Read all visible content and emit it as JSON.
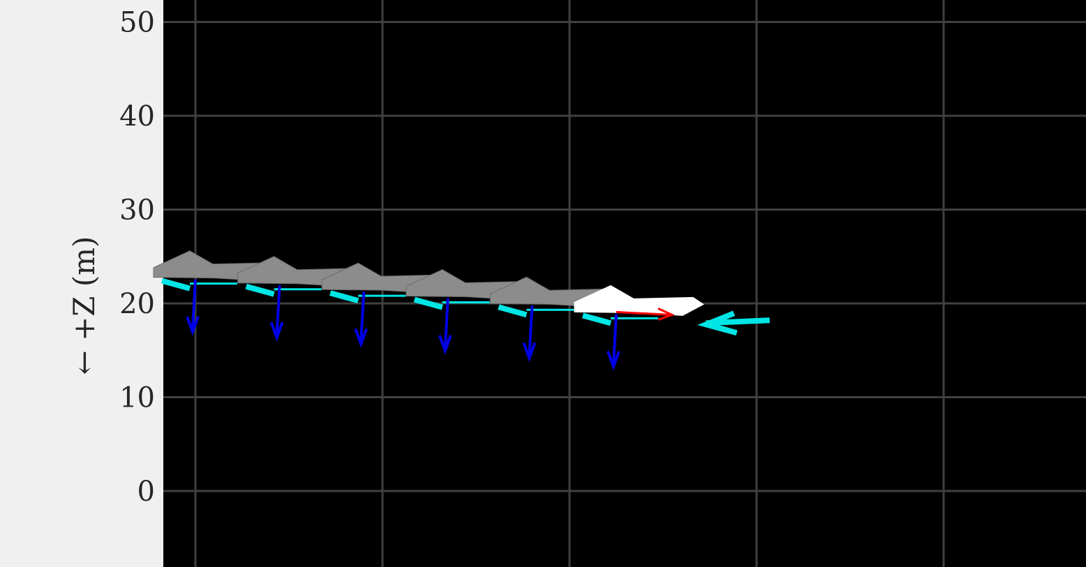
{
  "chart_data": {
    "type": "line",
    "title": "",
    "xlabel": "",
    "ylabel": "← +Z (m)",
    "ylim": [
      -8,
      52
    ],
    "xlim": [
      -1.7,
      47.5
    ],
    "grid": true,
    "background": "#000000",
    "y_ticks": [
      "0",
      "10",
      "20",
      "30",
      "40",
      "50"
    ],
    "y_tick_values": [
      0,
      10,
      20,
      30,
      40,
      50
    ],
    "x_grid_values": [
      0,
      10,
      20,
      30,
      40
    ],
    "series": [
      {
        "name": "aircraft trajectory",
        "frames": [
          {
            "x": 0,
            "z": 23.0
          },
          {
            "x": 4.5,
            "z": 22.4
          },
          {
            "x": 9.0,
            "z": 21.7
          },
          {
            "x": 13.5,
            "z": 21.0
          },
          {
            "x": 18.0,
            "z": 20.2
          },
          {
            "x": 22.5,
            "z": 19.3
          }
        ]
      }
    ],
    "vectors": {
      "lift_down": {
        "color": "#0000e6",
        "length_m": 5.3
      },
      "velocity": {
        "color": "#ff0000"
      },
      "drag_wind": {
        "color": "#00e5e5",
        "tail": {
          "x": 30.7,
          "z": 18.2
        },
        "head": {
          "x": 27.3,
          "z": 17.9
        }
      }
    },
    "colors": {
      "grid": "#404040",
      "ghost_aircraft": "#8c8c8c",
      "current_aircraft": "#ffffff"
    }
  }
}
